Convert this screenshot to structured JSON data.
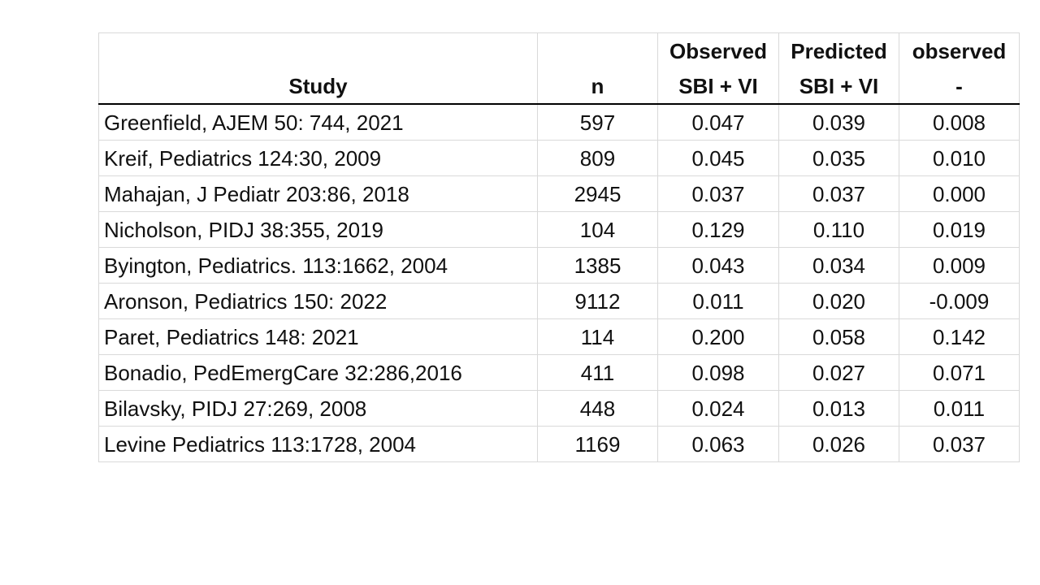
{
  "table": {
    "headers": {
      "row1": [
        "",
        "",
        "Observed",
        "Predicted",
        "observed"
      ],
      "row2": [
        "Study",
        "n",
        "SBI + VI",
        "SBI + VI",
        "-"
      ]
    },
    "rows": [
      {
        "study": "Greenfield, AJEM 50: 744, 2021",
        "n": "597",
        "observed": "0.047",
        "predicted": "0.039",
        "diff": "0.008"
      },
      {
        "study": "Kreif, Pediatrics 124:30, 2009",
        "n": "809",
        "observed": "0.045",
        "predicted": "0.035",
        "diff": "0.010"
      },
      {
        "study": "Mahajan, J Pediatr 203:86, 2018",
        "n": "2945",
        "observed": "0.037",
        "predicted": "0.037",
        "diff": "0.000"
      },
      {
        "study": "Nicholson, PIDJ 38:355, 2019",
        "n": "104",
        "observed": "0.129",
        "predicted": "0.110",
        "diff": "0.019"
      },
      {
        "study": "Byington, Pediatrics. 113:1662, 2004",
        "n": "1385",
        "observed": "0.043",
        "predicted": "0.034",
        "diff": "0.009"
      },
      {
        "study": "Aronson, Pediatrics 150: 2022",
        "n": "9112",
        "observed": "0.011",
        "predicted": "0.020",
        "diff": "-0.009"
      },
      {
        "study": "Paret, Pediatrics 148: 2021",
        "n": "114",
        "observed": "0.200",
        "predicted": "0.058",
        "diff": "0.142"
      },
      {
        "study": "Bonadio, PedEmergCare 32:286,2016",
        "n": "411",
        "observed": "0.098",
        "predicted": "0.027",
        "diff": "0.071"
      },
      {
        "study": "Bilavsky, PIDJ 27:269, 2008",
        "n": "448",
        "observed": "0.024",
        "predicted": "0.013",
        "diff": "0.011"
      },
      {
        "study": "Levine Pediatrics 113:1728, 2004",
        "n": "1169",
        "observed": "0.063",
        "predicted": "0.026",
        "diff": "0.037"
      }
    ]
  }
}
